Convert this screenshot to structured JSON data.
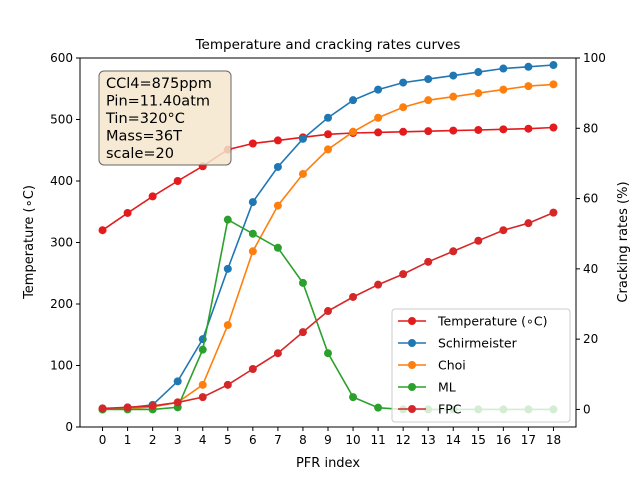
{
  "chart_data": {
    "type": "line",
    "title": "Temperature and cracking rates curves",
    "xlabel": "PFR index",
    "ylabel_left": "Temperature (∘C)",
    "ylabel_right": "Cracking rates (%)",
    "x": [
      0,
      1,
      2,
      3,
      4,
      5,
      6,
      7,
      8,
      9,
      10,
      11,
      12,
      13,
      14,
      15,
      16,
      17,
      18
    ],
    "xlim": [
      -0.9,
      18.9
    ],
    "ylim_left": [
      0,
      600
    ],
    "ylim_right": [
      -5,
      100
    ],
    "yticks_left": [
      0,
      100,
      200,
      300,
      400,
      500,
      600
    ],
    "yticks_right": [
      0,
      20,
      40,
      60,
      80,
      100
    ],
    "grid": false,
    "legend_position": "lower-right",
    "annotation": [
      "CCl4=875ppm",
      "Pin=11.40atm",
      "Tin=320°C",
      "Mass=36T",
      "scale=20"
    ],
    "series": [
      {
        "name": "Temperature (∘C)",
        "axis": "left",
        "color": "#e41a1c",
        "values": [
          320,
          348,
          375,
          400,
          424,
          451,
          461,
          466,
          471,
          476,
          478,
          479,
          480,
          481,
          482,
          483,
          484,
          485,
          487
        ]
      },
      {
        "name": "Schirmeister",
        "axis": "right",
        "color": "#1f77b4",
        "values": [
          0,
          0.5,
          1.3,
          8,
          20,
          40,
          59,
          69,
          77,
          83,
          88,
          91,
          93,
          94,
          95,
          96,
          97,
          97.5,
          98
        ]
      },
      {
        "name": "Choi",
        "axis": "right",
        "color": "#ff7f0e",
        "values": [
          0,
          0.3,
          0.7,
          2,
          7,
          24,
          45,
          58,
          67,
          74,
          79,
          83,
          86,
          88,
          89,
          90,
          91,
          92,
          92.5
        ]
      },
      {
        "name": "ML",
        "axis": "right",
        "color": "#2ca02c",
        "values": [
          0,
          0,
          0,
          0.6,
          17,
          54,
          50,
          46,
          36,
          16,
          3.5,
          0.5,
          0,
          0,
          0,
          0,
          0,
          0,
          0
        ]
      },
      {
        "name": "FPC",
        "axis": "right",
        "color": "#d62728",
        "values": [
          0.3,
          0.6,
          1,
          2,
          3.5,
          7,
          11.5,
          16,
          22,
          28,
          32,
          35.5,
          38.5,
          42,
          45,
          48,
          51,
          53,
          56
        ]
      }
    ]
  }
}
